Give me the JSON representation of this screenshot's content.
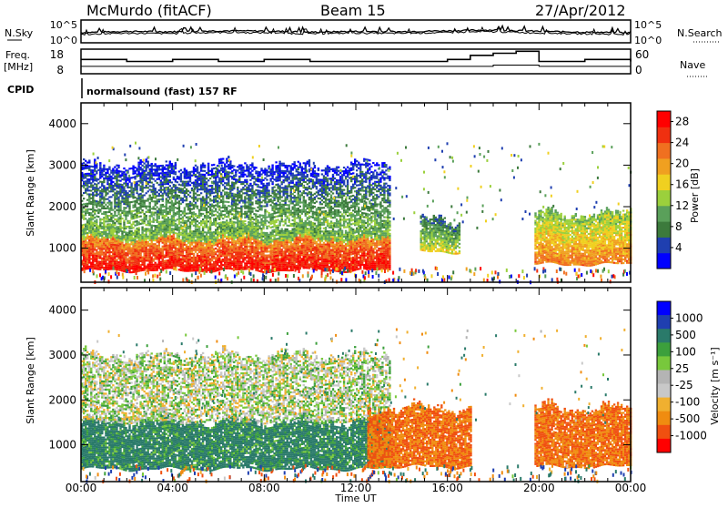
{
  "header": {
    "station": "McMurdo (fitACF)",
    "beam": "Beam 15",
    "date": "27/Apr/2012",
    "left_labels": {
      "nsky": "N.Sky",
      "freq_top": "Freq.",
      "freq_unit": "[MHz]",
      "cpid": "CPID"
    },
    "right_labels": {
      "nsearch": "N.Search",
      "nave": "Nave"
    },
    "noise_ticks_left": [
      "10^5",
      "10^0"
    ],
    "noise_ticks_right": [
      "10^5",
      "10^0"
    ],
    "freq_ticks": [
      "18",
      "8"
    ],
    "nave_ticks": [
      "60",
      "0"
    ],
    "cpid_text": "normalsound (fast) 157 RF"
  },
  "colors": {
    "power_scale": [
      "#0000ff",
      "#1f3fb0",
      "#3c7a3c",
      "#5aa05a",
      "#9bd03c",
      "#f0d020",
      "#f0a020",
      "#f07020",
      "#f03010",
      "#ff0000"
    ],
    "velocity_scale": [
      "#ff0000",
      "#f05010",
      "#f08c10",
      "#f0b030",
      "#c8c8c8",
      "#b4b4b4",
      "#78c83c",
      "#3ca03c",
      "#2a7a6a",
      "#1f3fb0",
      "#0000ff"
    ]
  },
  "chart_data": [
    {
      "type": "line",
      "title": "N.Sky / N.Search",
      "xlabel": "",
      "ylabel": "",
      "y_scale": "log",
      "ylim": [
        "10^0",
        "10^5"
      ],
      "xlim": [
        "00:00",
        "24:00"
      ],
      "series": [
        {
          "name": "N.Sky",
          "x": [
            0,
            2,
            4,
            6,
            8,
            10,
            12,
            14,
            16,
            18,
            20,
            22,
            24
          ],
          "values": [
            150,
            300,
            250,
            400,
            350,
            200,
            300,
            250,
            400,
            600,
            300,
            200,
            150
          ]
        },
        {
          "name": "N.Search",
          "x": [
            0,
            2,
            4,
            6,
            8,
            10,
            12,
            14,
            16,
            18,
            20,
            22,
            24
          ],
          "values": [
            60,
            120,
            100,
            180,
            150,
            90,
            130,
            110,
            170,
            250,
            130,
            90,
            60
          ]
        }
      ]
    },
    {
      "type": "line",
      "title": "Freq. / Nave",
      "ylabel": "Freq. [MHz]",
      "ylim": [
        8,
        18
      ],
      "y2label": "Nave",
      "y2lim": [
        0,
        60
      ],
      "xlim": [
        "00:00",
        "24:00"
      ],
      "series": [
        {
          "name": "Freq.",
          "x": [
            0,
            4,
            8,
            12,
            16,
            18,
            20,
            22,
            24
          ],
          "values": [
            11,
            11,
            11,
            11,
            11,
            11.5,
            11,
            11,
            11
          ]
        },
        {
          "name": "Nave",
          "x": [
            0,
            2,
            4,
            6,
            8,
            10,
            12,
            14,
            16,
            17,
            18,
            19,
            20,
            22,
            24
          ],
          "values": [
            35,
            30,
            35,
            30,
            35,
            30,
            30,
            30,
            35,
            45,
            50,
            55,
            30,
            35,
            30
          ]
        }
      ]
    },
    {
      "type": "heatmap",
      "title": "",
      "xlabel": "",
      "ylabel": "Slant Range [km]",
      "x_ticks": [
        "00:00",
        "04:00",
        "08:00",
        "12:00",
        "16:00",
        "20:00",
        "00:00"
      ],
      "y_ticks": [
        "1000",
        "2000",
        "3000",
        "4000"
      ],
      "ylim": [
        180,
        4500
      ],
      "colorbar": {
        "label": "Power [dB]",
        "ticks": [
          "4",
          "8",
          "12",
          "16",
          "20",
          "24",
          "28"
        ],
        "range": [
          0,
          30
        ]
      },
      "bands": [
        {
          "t_start": 0,
          "t_end": 13.5,
          "range_low": 450,
          "range_high": 1500,
          "value": 28
        },
        {
          "t_start": 0,
          "t_end": 13.5,
          "range_low": 1500,
          "range_high": 3000,
          "value": 12
        },
        {
          "t_start": 14.8,
          "t_end": 16.5,
          "range_low": 900,
          "range_high": 1700,
          "value": 16
        },
        {
          "t_start": 19.8,
          "t_end": 24,
          "range_low": 600,
          "range_high": 1800,
          "value": 22
        }
      ]
    },
    {
      "type": "heatmap",
      "title": "",
      "xlabel": "Time UT",
      "ylabel": "Slant Range [km]",
      "x_ticks": [
        "00:00",
        "04:00",
        "08:00",
        "12:00",
        "16:00",
        "20:00",
        "00:00"
      ],
      "y_ticks": [
        "1000",
        "2000",
        "3000",
        "4000"
      ],
      "ylim": [
        180,
        4500
      ],
      "colorbar": {
        "label": "Velocity [m s⁻¹]",
        "ticks": [
          "1000",
          "500",
          "100",
          "25",
          "-25",
          "-100",
          "-500",
          "-1000"
        ]
      },
      "bands": [
        {
          "t_start": 0,
          "t_end": 13.5,
          "range_low": 450,
          "range_high": 1500,
          "value": 100
        },
        {
          "t_start": 0,
          "t_end": 13.5,
          "range_low": 1500,
          "range_high": 3000,
          "value": 0
        },
        {
          "t_start": 12.5,
          "t_end": 17,
          "range_low": 500,
          "range_high": 1800,
          "value": -300
        },
        {
          "t_start": 19.8,
          "t_end": 24,
          "range_low": 500,
          "range_high": 1800,
          "value": -300
        }
      ]
    }
  ]
}
